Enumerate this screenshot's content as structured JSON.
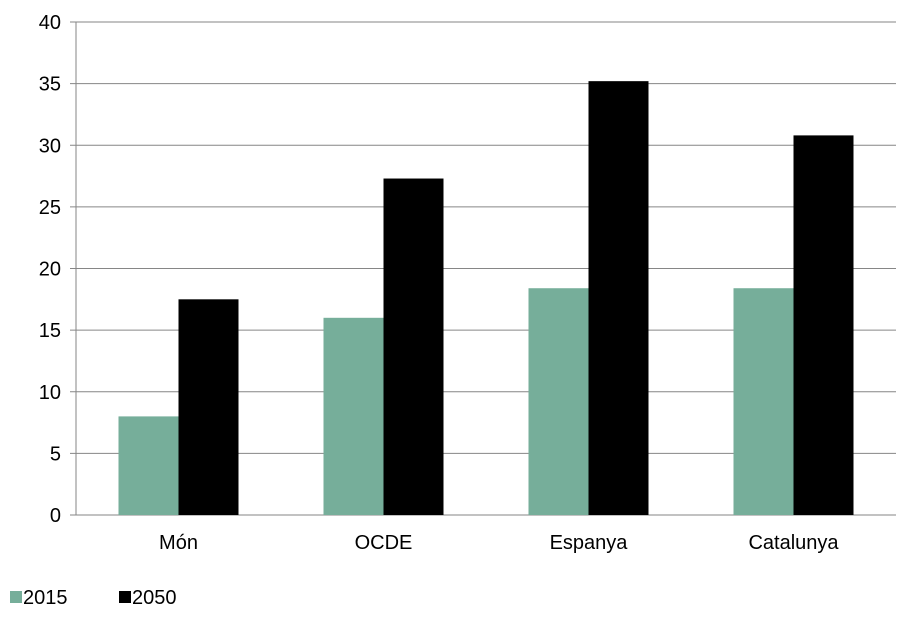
{
  "chart_data": {
    "type": "bar",
    "categories": [
      "Món",
      "OCDE",
      "Espanya",
      "Catalunya"
    ],
    "series": [
      {
        "name": "2015",
        "values": [
          8.0,
          16.0,
          18.4,
          18.4
        ],
        "color": "#76ae9a"
      },
      {
        "name": "2050",
        "values": [
          17.5,
          27.3,
          35.2,
          30.8
        ],
        "color": "#000000"
      }
    ],
    "ylim": [
      0,
      40
    ],
    "yticks": [
      "0",
      "5",
      "10",
      "15",
      "20",
      "25",
      "30",
      "35",
      "40"
    ],
    "grid": true,
    "legend_position": "bottom-left",
    "title": "",
    "xlabel": "",
    "ylabel": ""
  }
}
